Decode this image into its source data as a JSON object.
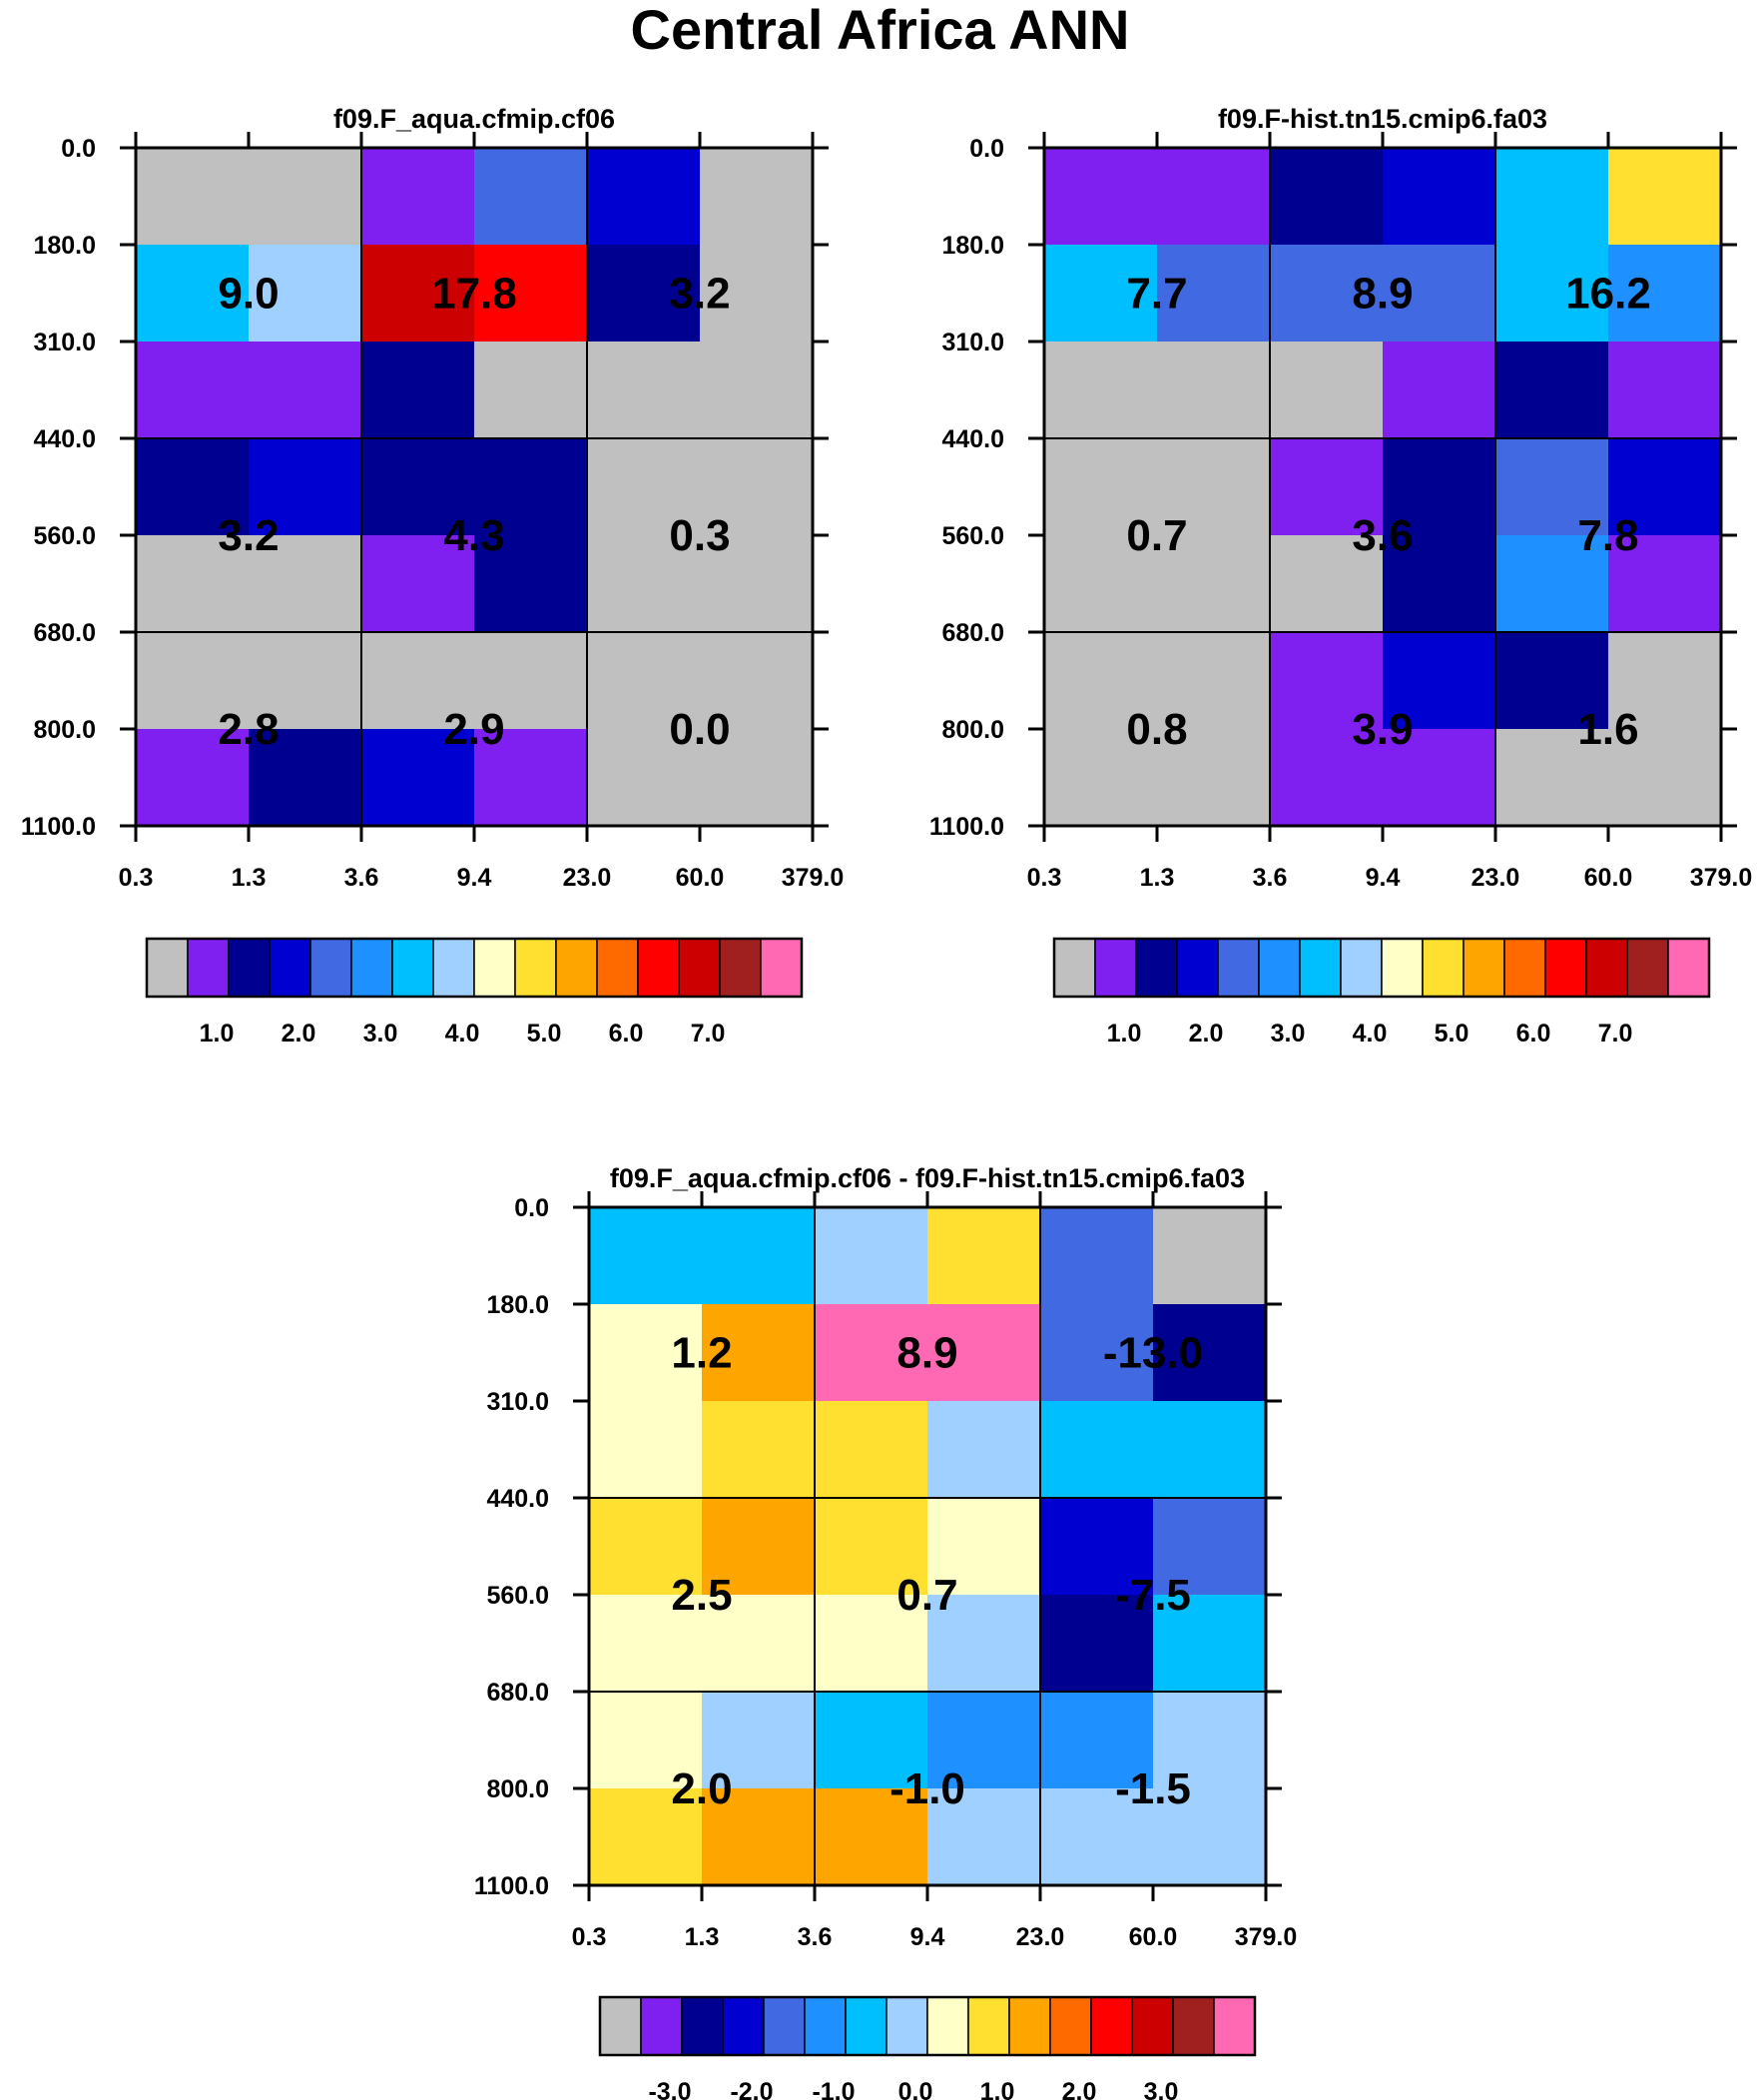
{
  "figure": {
    "title": "Central Africa ANN"
  },
  "colors": {
    "abs": [
      "#c0c0c0",
      "#8020f0",
      "#000090",
      "#0000d0",
      "#4169e1",
      "#1e90ff",
      "#00bfff",
      "#a0d0ff",
      "#ffffc8",
      "#ffe030",
      "#ffa500",
      "#ff6a00",
      "#ff0000",
      "#cc0000",
      "#a02020",
      "#ff69b4"
    ],
    "diff": [
      "#c0c0c0",
      "#8020f0",
      "#000090",
      "#0000d0",
      "#4169e1",
      "#1e90ff",
      "#00bfff",
      "#a0d0ff",
      "#ffffc8",
      "#ffe030",
      "#ffa500",
      "#ff6a00",
      "#ff0000",
      "#cc0000",
      "#a02020",
      "#ff69b4"
    ]
  },
  "chart_data": [
    {
      "type": "heatmap",
      "title": "f09.F_aqua.cfmip.cf06",
      "xlabel": "",
      "ylabel": "",
      "x_ticks": [
        "0.3",
        "1.3",
        "3.6",
        "9.4",
        "23.0",
        "60.0",
        "379.0"
      ],
      "y_ticks": [
        "0.0",
        "180.0",
        "310.0",
        "440.0",
        "560.0",
        "680.0",
        "800.0",
        "1100.0"
      ],
      "cell_colors": [
        [
          0,
          0,
          1,
          4,
          3,
          0
        ],
        [
          6,
          7,
          13,
          12,
          2,
          0
        ],
        [
          1,
          1,
          2,
          0,
          0,
          0
        ],
        [
          2,
          3,
          2,
          2,
          0,
          0
        ],
        [
          0,
          0,
          1,
          2,
          0,
          0
        ],
        [
          0,
          0,
          0,
          0,
          0,
          0
        ],
        [
          1,
          2,
          3,
          1,
          0,
          0
        ]
      ],
      "block_values": [
        [
          "9.0",
          "17.8",
          "3.2"
        ],
        [
          "3.2",
          "4.3",
          "0.3"
        ],
        [
          "2.8",
          "2.9",
          "0.0"
        ]
      ],
      "colorbar": {
        "labels": [
          "1.0",
          "2.0",
          "3.0",
          "4.0",
          "5.0",
          "6.0",
          "7.0"
        ]
      }
    },
    {
      "type": "heatmap",
      "title": "f09.F-hist.tn15.cmip6.fa03",
      "xlabel": "",
      "ylabel": "",
      "x_ticks": [
        "0.3",
        "1.3",
        "3.6",
        "9.4",
        "23.0",
        "60.0",
        "379.0"
      ],
      "y_ticks": [
        "0.0",
        "180.0",
        "310.0",
        "440.0",
        "560.0",
        "680.0",
        "800.0",
        "1100.0"
      ],
      "cell_colors": [
        [
          1,
          1,
          2,
          3,
          6,
          9
        ],
        [
          6,
          4,
          4,
          4,
          6,
          5
        ],
        [
          0,
          0,
          0,
          1,
          2,
          1
        ],
        [
          0,
          0,
          1,
          2,
          4,
          3
        ],
        [
          0,
          0,
          0,
          2,
          5,
          1
        ],
        [
          0,
          0,
          1,
          3,
          2,
          0
        ],
        [
          0,
          0,
          1,
          1,
          0,
          0
        ]
      ],
      "block_values": [
        [
          "7.7",
          "8.9",
          "16.2"
        ],
        [
          "0.7",
          "3.6",
          "7.8"
        ],
        [
          "0.8",
          "3.9",
          "1.6"
        ]
      ],
      "colorbar": {
        "labels": [
          "1.0",
          "2.0",
          "3.0",
          "4.0",
          "5.0",
          "6.0",
          "7.0"
        ]
      }
    },
    {
      "type": "heatmap",
      "title": "f09.F_aqua.cfmip.cf06 - f09.F-hist.tn15.cmip6.fa03",
      "xlabel": "",
      "ylabel": "",
      "x_ticks": [
        "0.3",
        "1.3",
        "3.6",
        "9.4",
        "23.0",
        "60.0",
        "379.0"
      ],
      "y_ticks": [
        "0.0",
        "180.0",
        "310.0",
        "440.0",
        "560.0",
        "680.0",
        "800.0",
        "1100.0"
      ],
      "cell_colors": [
        [
          6,
          6,
          7,
          9,
          4,
          0
        ],
        [
          8,
          10,
          15,
          15,
          4,
          2
        ],
        [
          8,
          9,
          9,
          7,
          6,
          6
        ],
        [
          9,
          10,
          9,
          8,
          3,
          4
        ],
        [
          8,
          8,
          8,
          7,
          2,
          6
        ],
        [
          8,
          7,
          6,
          5,
          5,
          7
        ],
        [
          9,
          10,
          10,
          7,
          7,
          7
        ]
      ],
      "block_values": [
        [
          "1.2",
          "8.9",
          "-13.0"
        ],
        [
          "2.5",
          "0.7",
          "-7.5"
        ],
        [
          "2.0",
          "-1.0",
          "-1.5"
        ]
      ],
      "colorbar": {
        "labels": [
          "-3.0",
          "-2.0",
          "-1.0",
          "0.0",
          "1.0",
          "2.0",
          "3.0"
        ]
      }
    }
  ]
}
